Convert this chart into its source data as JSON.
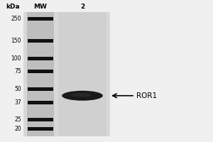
{
  "background_color": "#f0f0f0",
  "gel_area_color": "#d8d8d8",
  "mw_lane_color": "#bebebe",
  "sample_lane_color": "#d0d0d0",
  "fig_width": 3.0,
  "fig_height": 2.0,
  "dpi": 100,
  "kda_labels": [
    "250",
    "150",
    "100",
    "75",
    "50",
    "37",
    "25",
    "20"
  ],
  "kda_values": [
    250,
    150,
    100,
    75,
    50,
    37,
    25,
    20
  ],
  "header_kda": "kDa",
  "header_mw": "MW",
  "header_lane2": "2",
  "mw_band_color": "#111111",
  "sample_band_kda": 43,
  "sample_band_color": "#333333",
  "tick_fontsize": 5.5,
  "header_fontsize": 6.5,
  "annotation_fontsize": 7.5
}
